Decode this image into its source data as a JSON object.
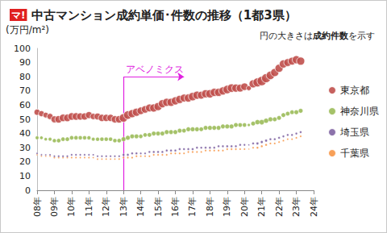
{
  "chart_data": {
    "type": "scatter",
    "logo": "マ!",
    "title": "中古マンション成約単価･件数の推移（1都3県）",
    "y_label": "(万円/m²)",
    "note": "円の大きさは成約件数を示す",
    "note_bold": "成約件数",
    "annotations": [
      {
        "text": "アベノミクス",
        "x": 2013,
        "y": 80,
        "x_end": 2016.5,
        "color": "#e020e0"
      }
    ],
    "x": [
      2008,
      2008.25,
      2008.5,
      2008.75,
      2009,
      2009.25,
      2009.5,
      2009.75,
      2010,
      2010.25,
      2010.5,
      2010.75,
      2011,
      2011.25,
      2011.5,
      2011.75,
      2012,
      2012.25,
      2012.5,
      2012.75,
      2013,
      2013.25,
      2013.5,
      2013.75,
      2014,
      2014.25,
      2014.5,
      2014.75,
      2015,
      2015.25,
      2015.5,
      2015.75,
      2016,
      2016.25,
      2016.5,
      2016.75,
      2017,
      2017.25,
      2017.5,
      2017.75,
      2018,
      2018.25,
      2018.5,
      2018.75,
      2019,
      2019.25,
      2019.5,
      2019.75,
      2020,
      2020.25,
      2020.5,
      2020.75,
      2021,
      2021.25,
      2021.5,
      2021.75,
      2022,
      2022.25,
      2022.5,
      2022.75,
      2023,
      2023.25
    ],
    "series": [
      {
        "name": "東京都",
        "color": "#c0504d",
        "values": [
          55,
          54,
          53,
          52,
          50,
          50,
          51,
          51,
          52,
          52,
          52,
          52,
          53,
          52,
          52,
          51,
          51,
          51,
          50,
          50,
          51,
          53,
          54,
          55,
          56,
          57,
          58,
          58,
          59,
          61,
          62,
          62,
          63,
          64,
          65,
          65,
          66,
          67,
          67,
          68,
          68,
          69,
          69,
          70,
          71,
          72,
          72,
          72,
          73,
          72,
          75,
          76,
          77,
          79,
          81,
          83,
          86,
          89,
          90,
          91,
          92,
          91
        ],
        "sizes": [
          1000,
          950,
          900,
          1000,
          1100,
          1200,
          1200,
          1200,
          1200,
          1200,
          1150,
          1150,
          1100,
          1000,
          1100,
          1150,
          1150,
          1150,
          1150,
          1200,
          1350,
          1350,
          1300,
          1300,
          1200,
          1200,
          1250,
          1300,
          1300,
          1300,
          1300,
          1300,
          1300,
          1300,
          1250,
          1300,
          1350,
          1300,
          1250,
          1300,
          1350,
          1300,
          1300,
          1300,
          1350,
          1350,
          1300,
          1250,
          1200,
          800,
          1300,
          1450,
          1500,
          1450,
          1350,
          1300,
          1300,
          1300,
          1250,
          1250,
          1300,
          1300
        ]
      },
      {
        "name": "神奈川県",
        "color": "#9bbb59",
        "values": [
          37,
          37,
          36,
          36,
          35,
          35,
          36,
          36,
          37,
          37,
          37,
          37,
          37,
          36,
          36,
          36,
          36,
          36,
          35,
          35,
          36,
          37,
          38,
          38,
          38,
          39,
          39,
          40,
          40,
          40,
          41,
          41,
          41,
          42,
          42,
          43,
          43,
          43,
          43,
          44,
          44,
          44,
          44,
          45,
          45,
          45,
          46,
          46,
          46,
          46,
          47,
          48,
          48,
          49,
          50,
          50,
          51,
          53,
          54,
          55,
          55,
          56
        ],
        "sizes": [
          550,
          520,
          500,
          550,
          600,
          650,
          650,
          650,
          650,
          650,
          620,
          620,
          600,
          550,
          600,
          620,
          620,
          620,
          620,
          650,
          720,
          720,
          700,
          700,
          650,
          650,
          680,
          700,
          700,
          700,
          700,
          700,
          700,
          700,
          680,
          700,
          720,
          700,
          680,
          700,
          720,
          700,
          700,
          700,
          720,
          720,
          700,
          680,
          650,
          450,
          700,
          780,
          800,
          780,
          720,
          700,
          700,
          700,
          680,
          680,
          700,
          700
        ]
      },
      {
        "name": "埼玉県",
        "color": "#8064a2",
        "values": [
          26,
          25,
          25,
          25,
          24,
          24,
          24,
          24,
          25,
          25,
          25,
          25,
          25,
          25,
          24,
          24,
          24,
          24,
          24,
          24,
          25,
          25,
          26,
          26,
          26,
          26,
          27,
          27,
          27,
          27,
          28,
          28,
          28,
          29,
          29,
          29,
          29,
          30,
          30,
          30,
          30,
          30,
          31,
          31,
          31,
          31,
          31,
          32,
          32,
          32,
          33,
          33,
          34,
          35,
          36,
          36,
          37,
          38,
          39,
          39,
          40,
          41
        ],
        "sizes": [
          280,
          260,
          250,
          280,
          300,
          320,
          320,
          320,
          320,
          320,
          310,
          310,
          300,
          280,
          300,
          310,
          310,
          310,
          310,
          320,
          360,
          360,
          350,
          350,
          320,
          320,
          340,
          350,
          350,
          350,
          350,
          350,
          350,
          350,
          340,
          350,
          360,
          350,
          340,
          350,
          360,
          350,
          350,
          350,
          360,
          360,
          350,
          340,
          320,
          220,
          350,
          390,
          400,
          390,
          360,
          350,
          350,
          350,
          340,
          340,
          350,
          350
        ]
      },
      {
        "name": "千葉県",
        "color": "#f79646",
        "values": [
          25,
          24,
          24,
          24,
          23,
          23,
          23,
          23,
          23,
          23,
          23,
          23,
          23,
          23,
          22,
          22,
          22,
          22,
          22,
          22,
          23,
          23,
          23,
          24,
          24,
          24,
          24,
          25,
          25,
          25,
          25,
          26,
          26,
          26,
          26,
          27,
          27,
          27,
          27,
          28,
          28,
          28,
          28,
          28,
          29,
          29,
          29,
          29,
          29,
          29,
          30,
          30,
          31,
          32,
          33,
          33,
          34,
          35,
          36,
          36,
          37,
          38
        ],
        "sizes": [
          240,
          230,
          220,
          240,
          260,
          280,
          280,
          280,
          280,
          280,
          270,
          270,
          260,
          240,
          260,
          270,
          270,
          270,
          270,
          280,
          310,
          310,
          300,
          300,
          280,
          280,
          290,
          300,
          300,
          300,
          300,
          300,
          300,
          300,
          290,
          300,
          310,
          300,
          290,
          300,
          310,
          300,
          300,
          300,
          310,
          310,
          300,
          290,
          280,
          190,
          300,
          340,
          350,
          340,
          310,
          300,
          300,
          300,
          290,
          290,
          300,
          300
        ]
      }
    ],
    "xlim": [
      2008,
      2024
    ],
    "xticks": [
      {
        "value": 2008,
        "label": "08年"
      },
      {
        "value": 2009,
        "label": "09年"
      },
      {
        "value": 2010,
        "label": "10年"
      },
      {
        "value": 2011,
        "label": "11年"
      },
      {
        "value": 2012,
        "label": "12年"
      },
      {
        "value": 2013,
        "label": "13年"
      },
      {
        "value": 2014,
        "label": "14年"
      },
      {
        "value": 2015,
        "label": "15年"
      },
      {
        "value": 2016,
        "label": "16年"
      },
      {
        "value": 2017,
        "label": "17年"
      },
      {
        "value": 2018,
        "label": "18年"
      },
      {
        "value": 2019,
        "label": "19年"
      },
      {
        "value": 2020,
        "label": "20年"
      },
      {
        "value": 2021,
        "label": "21年"
      },
      {
        "value": 2022,
        "label": "22年"
      },
      {
        "value": 2023,
        "label": "23年"
      },
      {
        "value": 2024,
        "label": "24年"
      }
    ],
    "ylim": [
      0,
      100
    ],
    "yticks": [
      0,
      10,
      20,
      30,
      40,
      50,
      60,
      70,
      80,
      90,
      100
    ],
    "grid": false,
    "legend": "right",
    "marker": "circle"
  }
}
